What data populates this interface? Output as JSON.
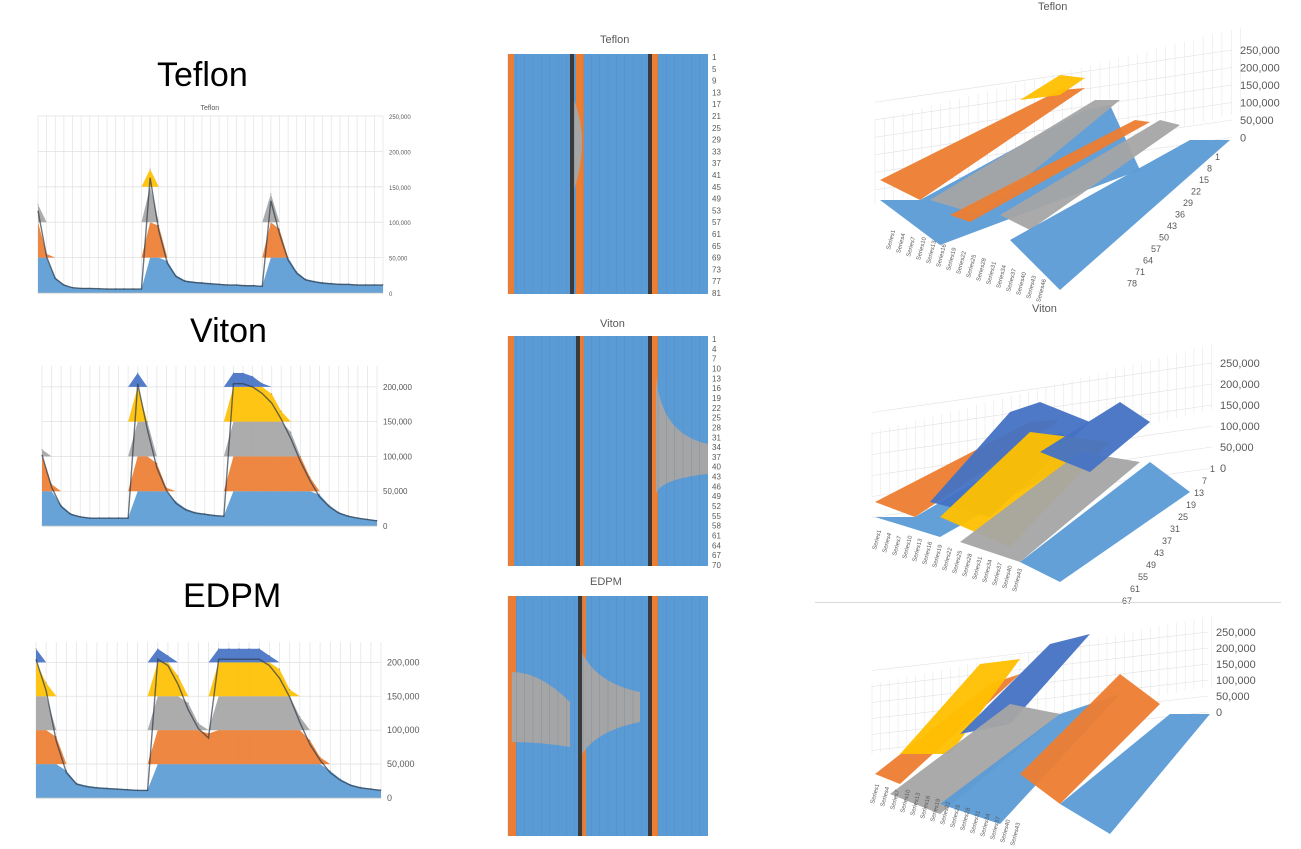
{
  "labels": {
    "teflon": "Teflon",
    "viton": "Viton",
    "edpm": "EDPM"
  },
  "colors": {
    "blue": "#5b9bd5",
    "orange": "#ed7d31",
    "gray": "#a5a5a5",
    "yellow": "#ffc000",
    "darkblue": "#4472c4",
    "dark": "#2f3b48"
  },
  "chart_data": [
    {
      "type": "area",
      "id": "teflon-2d",
      "title": "Teflon",
      "y_ticks": [
        "250,000",
        "200,000",
        "150,000",
        "100,000",
        "50,000",
        "0"
      ],
      "ylim": [
        0,
        250000
      ],
      "series_note": "stacked band surface",
      "x": [
        1,
        3,
        5,
        7,
        9,
        11,
        13,
        15,
        17,
        19,
        21,
        23,
        25,
        27,
        29,
        31,
        33,
        35,
        37,
        39,
        41,
        43,
        45,
        47,
        49,
        51,
        53,
        55,
        57,
        59,
        61,
        63,
        65,
        67,
        69,
        71,
        73,
        75,
        77,
        79,
        81
      ],
      "values": [
        125000,
        55000,
        22000,
        12000,
        8000,
        7000,
        7000,
        6500,
        6000,
        6000,
        6000,
        6000,
        6000,
        175000,
        95000,
        45000,
        25000,
        18000,
        16000,
        15000,
        14000,
        13000,
        12000,
        12000,
        11000,
        11000,
        10000,
        140000,
        90000,
        50000,
        30000,
        20000,
        17000,
        15000,
        14000,
        13000,
        13000,
        12000,
        12000,
        12000,
        12000
      ]
    },
    {
      "type": "area",
      "id": "viton-2d",
      "title": "",
      "y_ticks": [
        "200,000",
        "150,000",
        "100,000",
        "50,000",
        "0"
      ],
      "ylim": [
        0,
        230000
      ],
      "x": [
        1,
        3,
        5,
        7,
        9,
        11,
        13,
        15,
        17,
        19,
        21,
        23,
        25,
        27,
        29,
        31,
        33,
        35,
        37,
        39,
        41,
        43,
        45,
        47,
        49,
        51,
        53,
        55,
        57,
        59,
        61,
        63,
        65,
        67,
        69,
        71
      ],
      "values": [
        110000,
        60000,
        30000,
        18000,
        14000,
        12000,
        12000,
        12000,
        12000,
        12000,
        220000,
        150000,
        90000,
        55000,
        35000,
        25000,
        20000,
        18000,
        16000,
        15000,
        220000,
        220000,
        215000,
        205000,
        190000,
        165000,
        135000,
        100000,
        70000,
        45000,
        30000,
        20000,
        15000,
        12000,
        10000,
        8000
      ]
    },
    {
      "type": "area",
      "id": "edpm-2d",
      "title": "",
      "y_ticks": [
        "200,000",
        "150,000",
        "100,000",
        "50,000",
        "0"
      ],
      "ylim": [
        0,
        230000
      ],
      "x": [
        1,
        3,
        5,
        7,
        9,
        11,
        13,
        15,
        17,
        19,
        21,
        23,
        25,
        27,
        29,
        31,
        33,
        35,
        37,
        39,
        41,
        43,
        45,
        47,
        49,
        51,
        53,
        55,
        57,
        59,
        61,
        63,
        65,
        67,
        69
      ],
      "values": [
        220000,
        170000,
        90000,
        40000,
        22000,
        18000,
        16000,
        15000,
        14000,
        13000,
        12000,
        12000,
        220000,
        210000,
        180000,
        140000,
        110000,
        95000,
        220000,
        220000,
        220000,
        220000,
        220000,
        210000,
        190000,
        160000,
        120000,
        85000,
        60000,
        40000,
        28000,
        20000,
        16000,
        14000,
        12000
      ]
    },
    {
      "type": "heatmap",
      "id": "teflon-map",
      "title": "Teflon",
      "y_ticks": [
        "1",
        "5",
        "9",
        "13",
        "17",
        "21",
        "25",
        "29",
        "33",
        "37",
        "41",
        "45",
        "49",
        "53",
        "57",
        "61",
        "65",
        "69",
        "73",
        "77",
        "81"
      ]
    },
    {
      "type": "heatmap",
      "id": "viton-map",
      "title": "Viton",
      "y_ticks": [
        "1",
        "4",
        "7",
        "10",
        "13",
        "16",
        "19",
        "22",
        "25",
        "28",
        "31",
        "34",
        "37",
        "40",
        "43",
        "46",
        "49",
        "52",
        "55",
        "58",
        "61",
        "64",
        "67",
        "70"
      ]
    },
    {
      "type": "heatmap",
      "id": "edpm-map",
      "title": "EDPM",
      "y_ticks": []
    },
    {
      "type": "surface",
      "id": "teflon-3d",
      "title": "Teflon",
      "z_ticks": [
        "250,000",
        "200,000",
        "150,000",
        "100,000",
        "50,000",
        "0"
      ],
      "depth_ticks": [
        "1",
        "8",
        "15",
        "22",
        "29",
        "36",
        "43",
        "50",
        "57",
        "64",
        "71",
        "78"
      ],
      "series_ticks": [
        "Series1",
        "Series4",
        "Series7",
        "Series10",
        "Series13",
        "Series16",
        "Series19",
        "Series22",
        "Series25",
        "Series28",
        "Series31",
        "Series34",
        "Series37",
        "Series40",
        "Series43",
        "Series46"
      ]
    },
    {
      "type": "surface",
      "id": "viton-3d",
      "title": "Viton",
      "z_ticks": [
        "250,000",
        "200,000",
        "150,000",
        "100,000",
        "50,000",
        "0"
      ],
      "depth_ticks": [
        "1",
        "7",
        "13",
        "19",
        "25",
        "31",
        "37",
        "43",
        "49",
        "55",
        "61",
        "67"
      ],
      "series_ticks": [
        "Series1",
        "Series4",
        "Series7",
        "Series10",
        "Series13",
        "Series16",
        "Series19",
        "Series22",
        "Series25",
        "Series28",
        "Series31",
        "Series34",
        "Series37",
        "Series40",
        "Series43"
      ]
    },
    {
      "type": "surface",
      "id": "edpm-3d",
      "title": "",
      "z_ticks": [
        "250,000",
        "200,000",
        "150,000",
        "100,000",
        "50,000",
        "0"
      ],
      "depth_ticks": [],
      "series_ticks": [
        "Series1",
        "Series4",
        "Series7",
        "Series10",
        "Series13",
        "Series16",
        "Series19",
        "Series22",
        "Series25",
        "Series28",
        "Series31",
        "Series34",
        "Series37",
        "Series40",
        "Series43"
      ]
    }
  ]
}
